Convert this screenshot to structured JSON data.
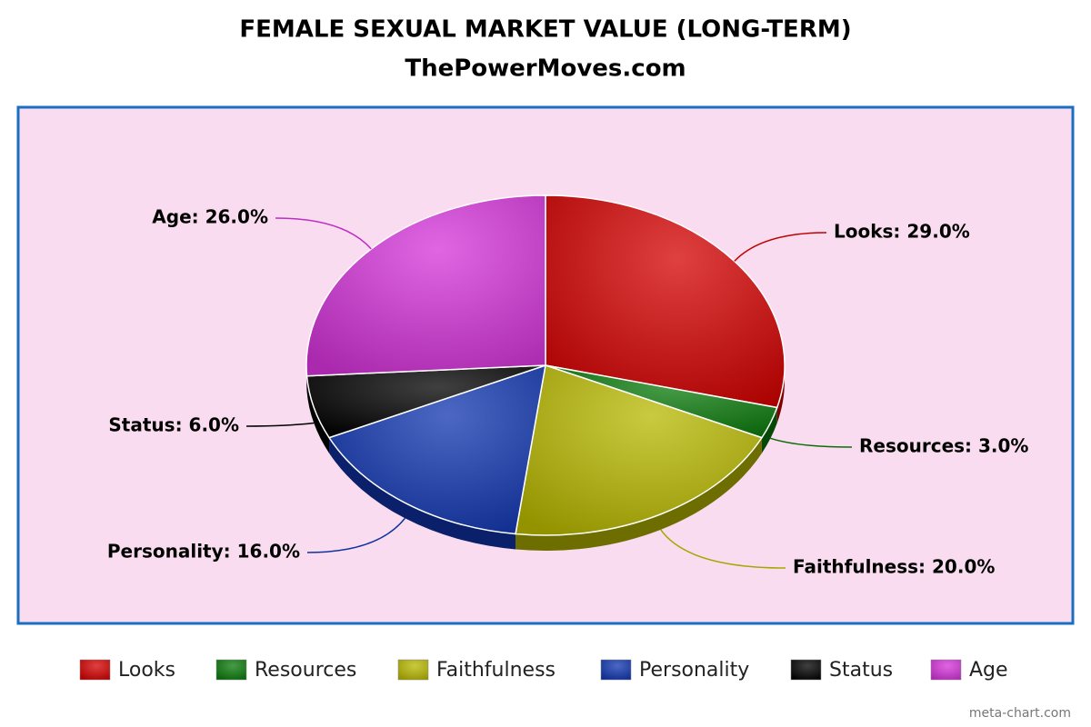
{
  "chart_data": {
    "type": "pie",
    "title": "FEMALE SEXUAL MARKET VALUE (LONG-TERM)",
    "subtitle": "ThePowerMoves.com",
    "categories": [
      "Looks",
      "Resources",
      "Faithfulness",
      "Personality",
      "Status",
      "Age"
    ],
    "values": [
      29,
      3,
      20,
      16,
      6,
      26
    ],
    "value_labels": [
      "Looks: 29.0%",
      "Resources: 3.0%",
      "Faithfulness: 20.0%",
      "Personality: 16.0%",
      "Status: 6.0%",
      "Age: 26.0%"
    ],
    "colors": [
      "#d40000",
      "#0a7a0a",
      "#b8b800",
      "#1036b0",
      "#000000",
      "#d433d9"
    ],
    "credit": "meta-chart.com"
  }
}
